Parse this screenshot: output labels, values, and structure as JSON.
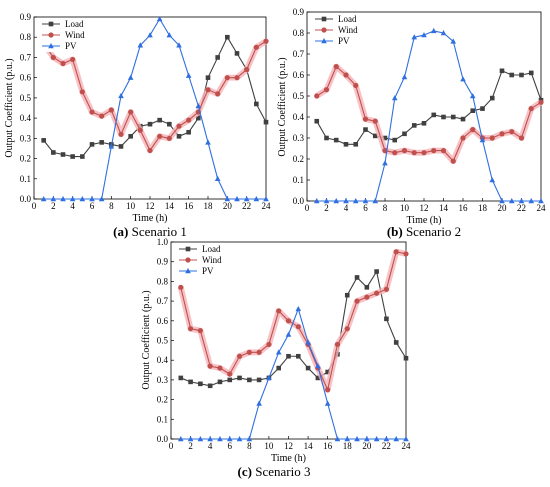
{
  "legend_colors": {
    "Load": "#404040",
    "Wind": "#c0504d",
    "PV": "#2f6fe0"
  },
  "band_color": "#f5b3b8",
  "chart_data": [
    {
      "type": "line",
      "caption_letter": "(a)",
      "caption_text": " Scenario 1",
      "xlabel": "Time (h)",
      "ylabel": "Output Coefficient (p.u.)",
      "xlim": [
        0,
        24
      ],
      "ylim": [
        0,
        0.9
      ],
      "xticks": [
        0,
        2,
        4,
        6,
        8,
        10,
        12,
        14,
        16,
        18,
        20,
        22,
        24
      ],
      "yticks": [
        0.0,
        0.1,
        0.2,
        0.3,
        0.4,
        0.5,
        0.6,
        0.7,
        0.8,
        0.9
      ],
      "ytick_labels": [
        "0.0",
        "0.1",
        "0.2",
        "0.3",
        "0.4",
        "0.5",
        "0.6",
        "0.7",
        "0.8",
        "0.9"
      ],
      "x": [
        1,
        2,
        3,
        4,
        5,
        6,
        7,
        8,
        9,
        10,
        11,
        12,
        13,
        14,
        15,
        16,
        17,
        18,
        19,
        20,
        21,
        22,
        23,
        24
      ],
      "series": [
        {
          "name": "Load",
          "marker": "square",
          "values": [
            0.29,
            0.23,
            0.22,
            0.21,
            0.21,
            0.27,
            0.28,
            0.27,
            0.26,
            0.31,
            0.36,
            0.37,
            0.39,
            0.37,
            0.31,
            0.33,
            0.4,
            0.6,
            0.7,
            0.8,
            0.72,
            0.64,
            0.47,
            0.38
          ]
        },
        {
          "name": "Wind",
          "marker": "circle",
          "values": [
            0.77,
            0.7,
            0.67,
            0.69,
            0.53,
            0.43,
            0.41,
            0.44,
            0.32,
            0.43,
            0.34,
            0.24,
            0.31,
            0.3,
            0.36,
            0.39,
            0.43,
            0.54,
            0.52,
            0.6,
            0.6,
            0.64,
            0.75,
            0.78
          ]
        },
        {
          "name": "PV",
          "marker": "triangle",
          "values": [
            0,
            0,
            0,
            0,
            0,
            0,
            0,
            0.26,
            0.51,
            0.6,
            0.76,
            0.81,
            0.89,
            0.81,
            0.76,
            0.61,
            0.46,
            0.28,
            0.1,
            0,
            0,
            0,
            0,
            0
          ]
        }
      ]
    },
    {
      "type": "line",
      "caption_letter": "(b)",
      "caption_text": " Scenario 2",
      "xlabel": "Time (h)",
      "ylabel": "Output Coefficient (p.u.)",
      "xlim": [
        0,
        24
      ],
      "ylim": [
        0,
        0.9
      ],
      "xticks": [
        0,
        2,
        4,
        6,
        8,
        10,
        12,
        14,
        16,
        18,
        20,
        22,
        24
      ],
      "yticks": [
        0.0,
        0.1,
        0.2,
        0.3,
        0.4,
        0.5,
        0.6,
        0.7,
        0.8,
        0.9
      ],
      "ytick_labels": [
        "0.0",
        "0.1",
        "0.2",
        "0.3",
        "0.4",
        "0.5",
        "0.6",
        "0.7",
        "0.8",
        "0.9"
      ],
      "x": [
        1,
        2,
        3,
        4,
        5,
        6,
        7,
        8,
        9,
        10,
        11,
        12,
        13,
        14,
        15,
        16,
        17,
        18,
        19,
        20,
        21,
        22,
        23,
        24
      ],
      "series": [
        {
          "name": "Load",
          "marker": "square",
          "values": [
            0.38,
            0.3,
            0.29,
            0.27,
            0.27,
            0.34,
            0.31,
            0.3,
            0.29,
            0.32,
            0.36,
            0.37,
            0.41,
            0.4,
            0.4,
            0.39,
            0.43,
            0.44,
            0.49,
            0.62,
            0.6,
            0.6,
            0.61,
            0.48
          ]
        },
        {
          "name": "Wind",
          "marker": "circle",
          "values": [
            0.5,
            0.53,
            0.64,
            0.6,
            0.55,
            0.39,
            0.38,
            0.24,
            0.23,
            0.24,
            0.23,
            0.23,
            0.24,
            0.24,
            0.19,
            0.3,
            0.34,
            0.3,
            0.3,
            0.32,
            0.33,
            0.3,
            0.44,
            0.47
          ]
        },
        {
          "name": "PV",
          "marker": "triangle",
          "values": [
            0,
            0,
            0,
            0,
            0,
            0,
            0,
            0.18,
            0.49,
            0.59,
            0.78,
            0.79,
            0.81,
            0.8,
            0.76,
            0.58,
            0.5,
            0.29,
            0.1,
            0,
            0,
            0,
            0,
            0
          ]
        }
      ]
    },
    {
      "type": "line",
      "caption_letter": "(c)",
      "caption_text": " Scenario 3",
      "xlabel": "Time (h)",
      "ylabel": "Output Coefficient (p.u.)",
      "xlim": [
        0,
        24
      ],
      "ylim": [
        0,
        1.0
      ],
      "xticks": [
        0,
        2,
        4,
        6,
        8,
        10,
        12,
        14,
        16,
        18,
        20,
        22,
        24
      ],
      "yticks": [
        0.0,
        0.1,
        0.2,
        0.3,
        0.4,
        0.5,
        0.6,
        0.7,
        0.8,
        0.9,
        1.0
      ],
      "ytick_labels": [
        "0.0",
        "0.1",
        "0.2",
        "0.3",
        "0.4",
        "0.5",
        "0.6",
        "0.7",
        "0.8",
        "0.9",
        "1.0"
      ],
      "x": [
        1,
        2,
        3,
        4,
        5,
        6,
        7,
        8,
        9,
        10,
        11,
        12,
        13,
        14,
        15,
        16,
        17,
        18,
        19,
        20,
        21,
        22,
        23,
        24
      ],
      "series": [
        {
          "name": "Load",
          "marker": "square",
          "values": [
            0.31,
            0.29,
            0.28,
            0.27,
            0.29,
            0.3,
            0.31,
            0.3,
            0.3,
            0.31,
            0.36,
            0.42,
            0.42,
            0.36,
            0.31,
            0.34,
            0.43,
            0.73,
            0.82,
            0.77,
            0.85,
            0.61,
            0.49,
            0.41
          ]
        },
        {
          "name": "Wind",
          "marker": "circle",
          "values": [
            0.77,
            0.56,
            0.55,
            0.37,
            0.36,
            0.33,
            0.42,
            0.44,
            0.44,
            0.48,
            0.65,
            0.6,
            0.57,
            0.48,
            0.36,
            0.25,
            0.48,
            0.56,
            0.7,
            0.72,
            0.74,
            0.76,
            0.95,
            0.94
          ]
        },
        {
          "name": "PV",
          "marker": "triangle",
          "values": [
            0,
            0,
            0,
            0,
            0,
            0,
            0,
            0,
            0.18,
            0.31,
            0.44,
            0.53,
            0.66,
            0.49,
            0.37,
            0.18,
            0,
            0,
            0,
            0,
            0,
            0,
            0,
            0
          ]
        }
      ]
    }
  ]
}
